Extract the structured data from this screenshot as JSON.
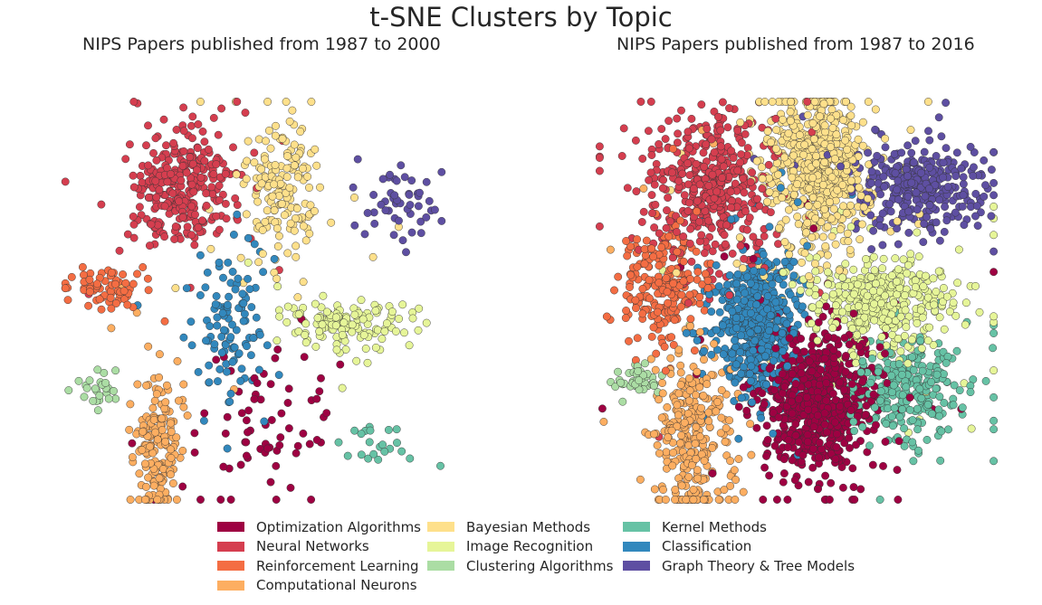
{
  "figure": {
    "suptitle": "t-SNE Clusters by Topic"
  },
  "chart_data": [
    {
      "type": "scatter",
      "title": "NIPS Papers published from 1987 to 2000",
      "axes_visible": false,
      "grid": false,
      "xlim": [
        -50,
        50
      ],
      "ylim": [
        -50,
        50
      ],
      "clusters": [
        {
          "name": "Optimization Algorithms",
          "color": "#9e0142",
          "center": [
            4,
            -30
          ],
          "spread": [
            9,
            9
          ],
          "count": 70
        },
        {
          "name": "Neural Networks",
          "color": "#d53e4f",
          "center": [
            -19,
            28
          ],
          "spread": [
            7,
            7
          ],
          "count": 300
        },
        {
          "name": "Reinforcement Learning",
          "color": "#f46d43",
          "center": [
            -37,
            3
          ],
          "spread": [
            5,
            2.5
          ],
          "count": 70
        },
        {
          "name": "Computational Neurons",
          "color": "#fdae61",
          "center": [
            -25,
            -36
          ],
          "spread": [
            3,
            9
          ],
          "count": 170
        },
        {
          "name": "Bayesian Methods",
          "color": "#fee08b",
          "center": [
            8,
            28
          ],
          "spread": [
            6,
            9
          ],
          "count": 170
        },
        {
          "name": "Image Recognition",
          "color": "#e6f598",
          "center": [
            25,
            -6
          ],
          "spread": [
            9,
            3
          ],
          "count": 140
        },
        {
          "name": "Clustering Algorithms",
          "color": "#abdda4",
          "center": [
            -41,
            -22
          ],
          "spread": [
            3,
            2
          ],
          "count": 25
        },
        {
          "name": "Kernel Methods",
          "color": "#66c2a5",
          "center": [
            33,
            -36
          ],
          "spread": [
            4,
            3
          ],
          "count": 22
        },
        {
          "name": "Classification",
          "color": "#3288bd",
          "center": [
            -6,
            -5
          ],
          "spread": [
            5,
            9
          ],
          "count": 110
        },
        {
          "name": "Graph Theory & Tree Models",
          "color": "#5e4fa2",
          "center": [
            38,
            24
          ],
          "spread": [
            5,
            5
          ],
          "count": 50
        }
      ]
    },
    {
      "type": "scatter",
      "title": "NIPS Papers published from 1987 to 2016",
      "axes_visible": false,
      "grid": false,
      "xlim": [
        -50,
        50
      ],
      "ylim": [
        -50,
        50
      ],
      "clusters": [
        {
          "name": "Optimization Algorithms",
          "color": "#9e0142",
          "center": [
            5,
            -25
          ],
          "spread": [
            7,
            9
          ],
          "count": 700
        },
        {
          "name": "Neural Networks",
          "color": "#d53e4f",
          "center": [
            -21,
            28
          ],
          "spread": [
            7,
            9
          ],
          "count": 450
        },
        {
          "name": "Reinforcement Learning",
          "color": "#f46d43",
          "center": [
            -33,
            4
          ],
          "spread": [
            5,
            7
          ],
          "count": 220
        },
        {
          "name": "Computational Neurons",
          "color": "#fdae61",
          "center": [
            -26,
            -33
          ],
          "spread": [
            5,
            11
          ],
          "count": 300
        },
        {
          "name": "Bayesian Methods",
          "color": "#fee08b",
          "center": [
            5,
            33
          ],
          "spread": [
            6,
            10
          ],
          "count": 650
        },
        {
          "name": "Image Recognition",
          "color": "#e6f598",
          "center": [
            21,
            -1
          ],
          "spread": [
            9,
            6
          ],
          "count": 400
        },
        {
          "name": "Clustering Algorithms",
          "color": "#abdda4",
          "center": [
            -39,
            -19
          ],
          "spread": [
            3,
            2
          ],
          "count": 45
        },
        {
          "name": "Kernel Methods",
          "color": "#66c2a5",
          "center": [
            27,
            -22
          ],
          "spread": [
            7,
            6
          ],
          "count": 260
        },
        {
          "name": "Classification",
          "color": "#3288bd",
          "center": [
            -10,
            -6
          ],
          "spread": [
            5,
            9
          ],
          "count": 500
        },
        {
          "name": "Graph Theory & Tree Models",
          "color": "#5e4fa2",
          "center": [
            30,
            28
          ],
          "spread": [
            8,
            5
          ],
          "count": 330
        }
      ]
    }
  ],
  "legend": {
    "placement": "bottom-center",
    "entries": [
      {
        "label": "Optimization Algorithms",
        "color": "#9e0142"
      },
      {
        "label": "Neural Networks",
        "color": "#d53e4f"
      },
      {
        "label": "Reinforcement Learning",
        "color": "#f46d43"
      },
      {
        "label": "Computational Neurons",
        "color": "#fdae61"
      },
      {
        "label": "Bayesian Methods",
        "color": "#fee08b"
      },
      {
        "label": "Image Recognition",
        "color": "#e6f598"
      },
      {
        "label": "Clustering Algorithms",
        "color": "#abdda4"
      },
      {
        "label": "Kernel Methods",
        "color": "#66c2a5"
      },
      {
        "label": "Classification",
        "color": "#3288bd"
      },
      {
        "label": "Graph Theory & Tree Models",
        "color": "#5e4fa2"
      }
    ]
  }
}
